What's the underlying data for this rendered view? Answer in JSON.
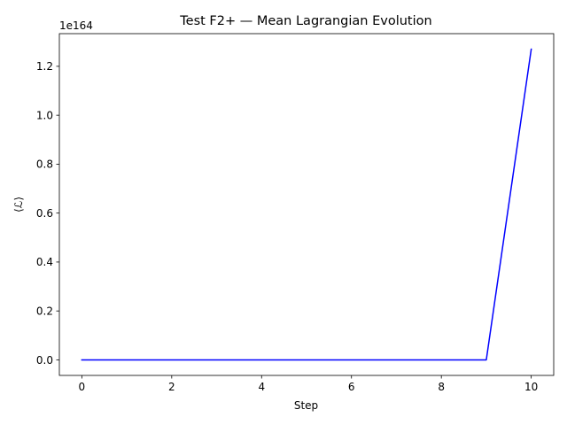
{
  "chart_data": {
    "type": "line",
    "title": "Test F2+ — Mean Lagrangian Evolution",
    "xlabel": "Step",
    "ylabel": "⟨ℒ⟩",
    "y_offset_label": "1e164",
    "xlim": [
      -0.5,
      10.5
    ],
    "ylim": [
      -0.0635,
      1.3335
    ],
    "x_ticks": [
      0,
      2,
      4,
      6,
      8,
      10
    ],
    "x_tick_labels": [
      "0",
      "2",
      "4",
      "6",
      "8",
      "10"
    ],
    "y_ticks": [
      0.0,
      0.2,
      0.4,
      0.6,
      0.8,
      1.0,
      1.2
    ],
    "y_tick_labels": [
      "0.0",
      "0.2",
      "0.4",
      "0.6",
      "0.8",
      "1.0",
      "1.2"
    ],
    "y_unit_scale": "1e164",
    "grid": false,
    "series": [
      {
        "color": "#0000ff",
        "x": [
          0,
          1,
          2,
          3,
          4,
          5,
          6,
          7,
          8,
          9,
          10
        ],
        "y": [
          0,
          0,
          0,
          0,
          0,
          0,
          0,
          0,
          0,
          0,
          1.27
        ]
      }
    ]
  }
}
